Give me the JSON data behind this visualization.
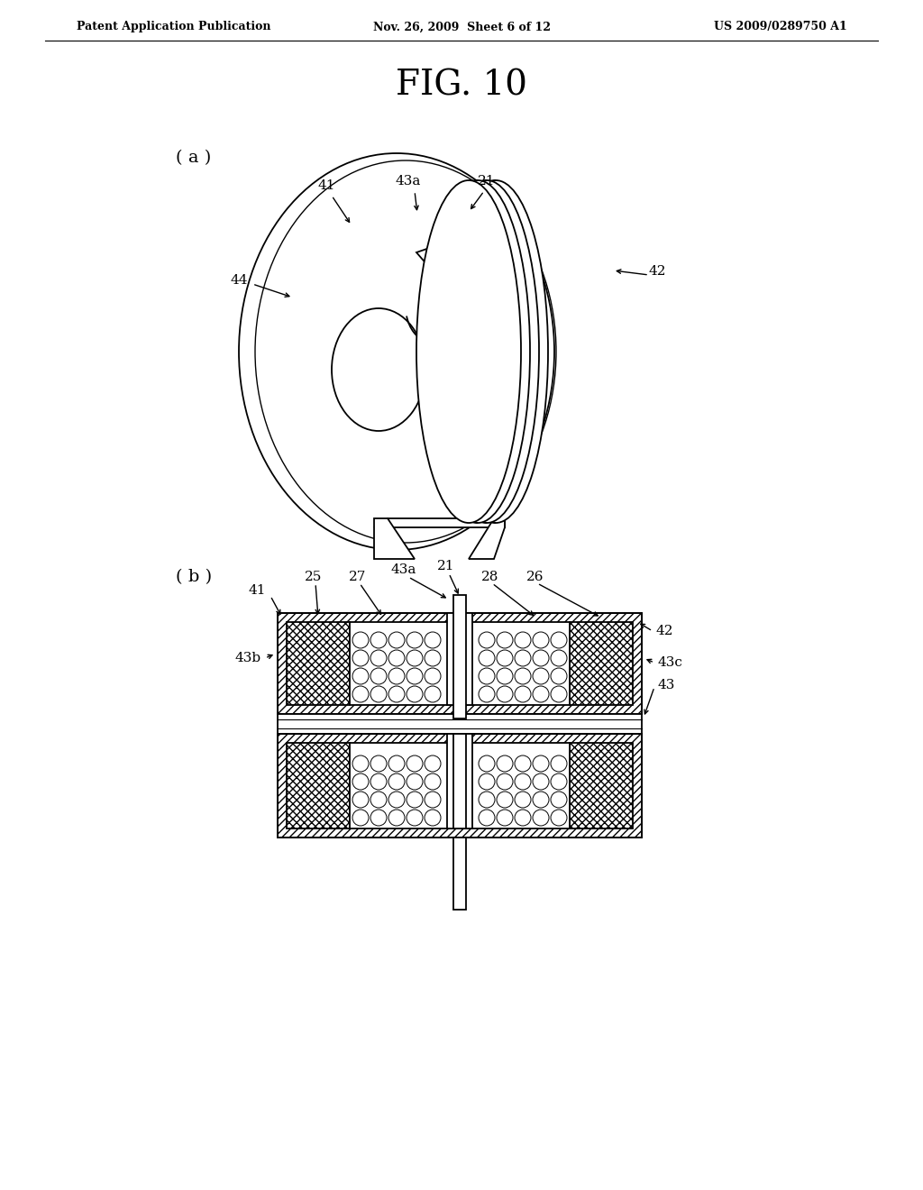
{
  "bg_color": "#ffffff",
  "line_color": "#000000",
  "header_left": "Patent Application Publication",
  "header_mid": "Nov. 26, 2009  Sheet 6 of 12",
  "header_right": "US 2009/0289750 A1",
  "fig_title": "FIG. 10",
  "label_a": "( a )",
  "label_b": "( b )"
}
